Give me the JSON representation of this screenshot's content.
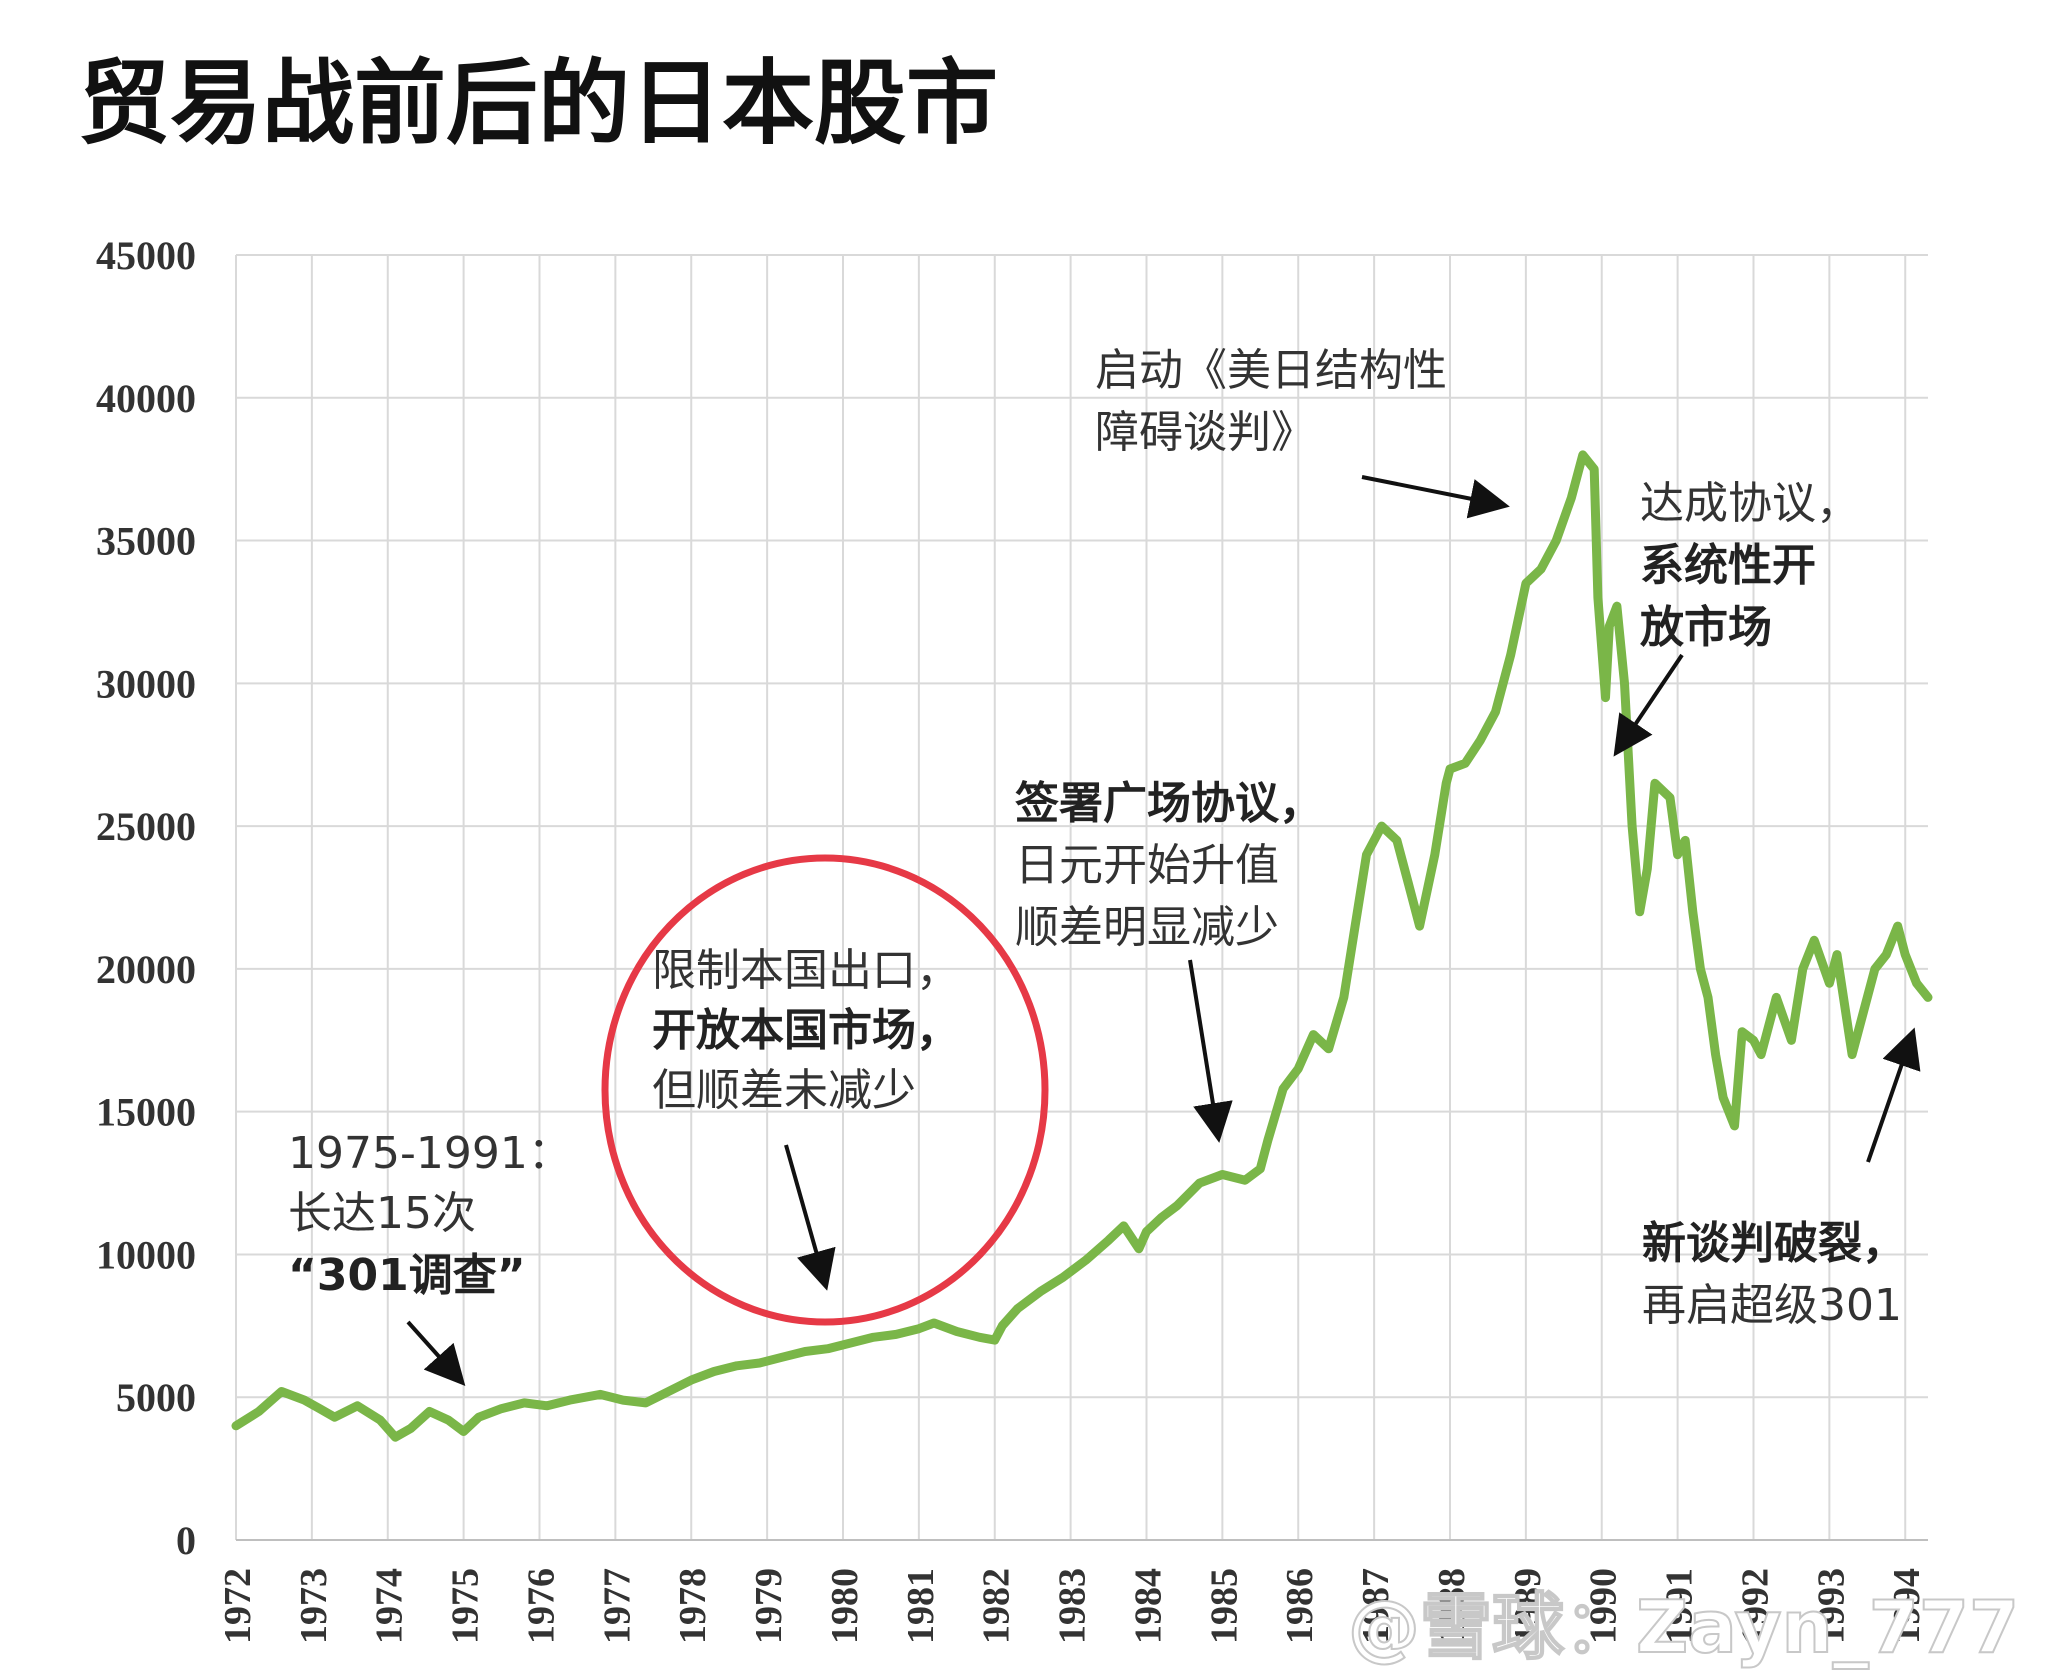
{
  "chart_data": {
    "type": "line",
    "title": "贸易战前后的日本股市",
    "xlabel": "",
    "ylabel": "",
    "xlim": [
      1972,
      1994.3
    ],
    "ylim": [
      0,
      45000
    ],
    "yticks": [
      "0",
      "5000",
      "10000",
      "15000",
      "20000",
      "25000",
      "30000",
      "35000",
      "40000",
      "45000"
    ],
    "xticks": [
      "1972",
      "1973",
      "1974",
      "1975",
      "1976",
      "1977",
      "1978",
      "1979",
      "1980",
      "1981",
      "1982",
      "1983",
      "1984",
      "1985",
      "1986",
      "1987",
      "1988",
      "1989",
      "1990",
      "1991",
      "1992",
      "1993",
      "1994"
    ],
    "grid": true,
    "color": "#7ab648",
    "series": [
      {
        "x": [
          1972.0,
          1972.3,
          1972.6,
          1972.9,
          1973.1,
          1973.3,
          1973.6,
          1973.9,
          1974.1,
          1974.3,
          1974.55,
          1974.8,
          1975.0,
          1975.2,
          1975.5,
          1975.8,
          1976.1,
          1976.4,
          1976.8,
          1977.1,
          1977.4,
          1977.7,
          1978.0,
          1978.3,
          1978.6,
          1978.9,
          1979.2,
          1979.5,
          1979.8,
          1980.1,
          1980.4,
          1980.7,
          1981.0,
          1981.2,
          1981.5,
          1981.8,
          1982.0,
          1982.1,
          1982.3,
          1982.6,
          1982.9,
          1983.2,
          1983.5,
          1983.7,
          1983.9,
          1984.0,
          1984.2,
          1984.4,
          1984.7,
          1985.0,
          1985.3,
          1985.5,
          1985.6,
          1985.8,
          1986.0,
          1986.2,
          1986.4,
          1986.6,
          1986.75,
          1986.9,
          1987.1,
          1987.3,
          1987.45,
          1987.6,
          1987.8,
          1987.95,
          1988.0,
          1988.2,
          1988.4,
          1988.6,
          1988.8,
          1989.0,
          1989.2,
          1989.4,
          1989.6,
          1989.75,
          1989.9,
          1989.95,
          1990.05,
          1990.1,
          1990.2,
          1990.3,
          1990.4,
          1990.5,
          1990.6,
          1990.7,
          1990.9,
          1991.0,
          1991.1,
          1991.2,
          1991.3,
          1991.4,
          1991.5,
          1991.6,
          1991.75,
          1991.85,
          1992.0,
          1992.1,
          1992.3,
          1992.5,
          1992.65,
          1992.8,
          1993.0,
          1993.1,
          1993.3,
          1993.45,
          1993.6,
          1993.75,
          1993.9,
          1994.0,
          1994.15,
          1994.3
        ],
        "y": [
          4000,
          4500,
          5200,
          4900,
          4600,
          4300,
          4700,
          4200,
          3600,
          3900,
          4500,
          4200,
          3800,
          4300,
          4600,
          4800,
          4700,
          4900,
          5100,
          4900,
          4800,
          5200,
          5600,
          5900,
          6100,
          6200,
          6400,
          6600,
          6700,
          6900,
          7100,
          7200,
          7400,
          7600,
          7300,
          7100,
          7000,
          7500,
          8100,
          8700,
          9200,
          9800,
          10500,
          11000,
          10200,
          10800,
          11300,
          11700,
          12500,
          12800,
          12600,
          13000,
          14000,
          15800,
          16500,
          17700,
          17200,
          19000,
          21500,
          24000,
          25000,
          24500,
          23000,
          21500,
          24000,
          26500,
          27000,
          27200,
          28000,
          29000,
          31000,
          33500,
          34000,
          35000,
          36500,
          38000,
          37500,
          33000,
          29500,
          32000,
          32700,
          30000,
          25000,
          22000,
          23500,
          26500,
          26000,
          24000,
          24500,
          22000,
          20000,
          19000,
          17000,
          15500,
          14500,
          17800,
          17500,
          17000,
          19000,
          17500,
          20000,
          21000,
          19500,
          20500,
          17000,
          18500,
          20000,
          20500,
          21500,
          20500,
          19500,
          19000
        ]
      }
    ],
    "annotations": [
      {
        "lines": [
          {
            "text": "1975-1991："
          },
          {
            "text": "长达15次"
          },
          {
            "text": "“301调查”",
            "bold": true
          }
        ]
      },
      {
        "lines": [
          {
            "text": "限制本国出口，"
          },
          {
            "text": "开放本国市场，",
            "bold": true
          },
          {
            "text": "但顺差未减少"
          }
        ]
      },
      {
        "lines": [
          {
            "text": "签署广场协议，",
            "bold": true
          },
          {
            "text": "日元开始升值"
          },
          {
            "text": "顺差明显减少"
          }
        ]
      },
      {
        "lines": [
          {
            "text": "启动《美日结构性"
          },
          {
            "text": "障碍谈判》"
          }
        ]
      },
      {
        "lines": [
          {
            "text": "达成协议，"
          },
          {
            "text": "系统性开",
            "bold": true
          },
          {
            "text": "放市场",
            "bold": true
          }
        ]
      },
      {
        "lines": [
          {
            "text": "新谈判破裂，",
            "bold": true
          },
          {
            "text": "再启超级301"
          }
        ]
      }
    ],
    "watermark": "@雪球：Zayn_777"
  }
}
